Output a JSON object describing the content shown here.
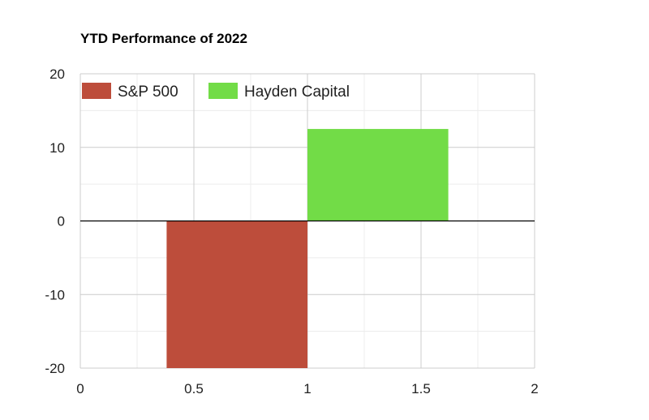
{
  "chart_data": {
    "type": "bar",
    "title": "YTD Performance of 2022",
    "xlabel": "",
    "ylabel": "",
    "xlim": [
      0,
      2
    ],
    "ylim": [
      -20,
      20
    ],
    "x_ticks": [
      0,
      0.5,
      1,
      1.5,
      2
    ],
    "x_tick_labels": [
      "0",
      "0.5",
      "1",
      "1.5",
      "2"
    ],
    "y_ticks": [
      20,
      10,
      0,
      -10,
      -20
    ],
    "y_tick_labels": [
      "20",
      "10",
      "0",
      "-10",
      "-20"
    ],
    "grid": true,
    "legend_position": "top-left",
    "series": [
      {
        "name": "S&P 500",
        "color": "#bd4d3b",
        "x_start": 0.38,
        "x_end": 1.0,
        "value": -20
      },
      {
        "name": "Hayden Capital",
        "color": "#72dc47",
        "x_start": 1.0,
        "x_end": 1.62,
        "value": 12.5
      }
    ]
  }
}
